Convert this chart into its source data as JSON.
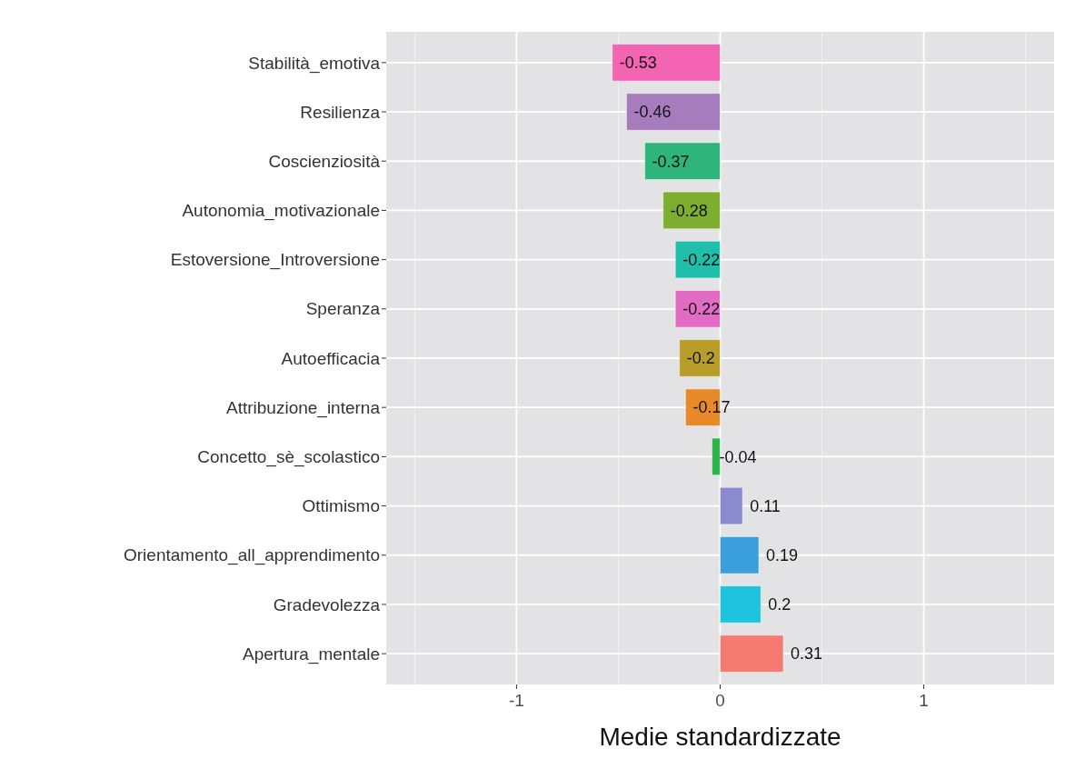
{
  "chart_data": {
    "type": "bar",
    "orientation": "horizontal",
    "xlabel": "Medie standardizzate",
    "categories": [
      "Stabilità_emotiva",
      "Resilienza",
      "Coscienziosità",
      "Autonomia_motivazionale",
      "Estoversione_Introversione",
      "Speranza",
      "Autoefficacia",
      "Attribuzione_interna",
      "Concetto_sè_scolastico",
      "Ottimismo",
      "Orientamento_all_apprendimento",
      "Gradevolezza",
      "Apertura_mentale"
    ],
    "values": [
      -0.53,
      -0.46,
      -0.37,
      -0.28,
      -0.22,
      -0.22,
      -0.2,
      -0.17,
      -0.04,
      0.11,
      0.19,
      0.2,
      0.31
    ],
    "colors": [
      "#f365b3",
      "#a67cbd",
      "#2db57c",
      "#7dae2f",
      "#1fbfab",
      "#e26cc4",
      "#b89d2a",
      "#e88a2a",
      "#2bb54a",
      "#8c8acf",
      "#3a9fdc",
      "#1ec3df",
      "#f47a72"
    ],
    "xlim": [
      -1.64,
      1.64
    ],
    "xticks": [
      -1,
      0,
      1
    ],
    "grid": true,
    "data_labels": true
  }
}
